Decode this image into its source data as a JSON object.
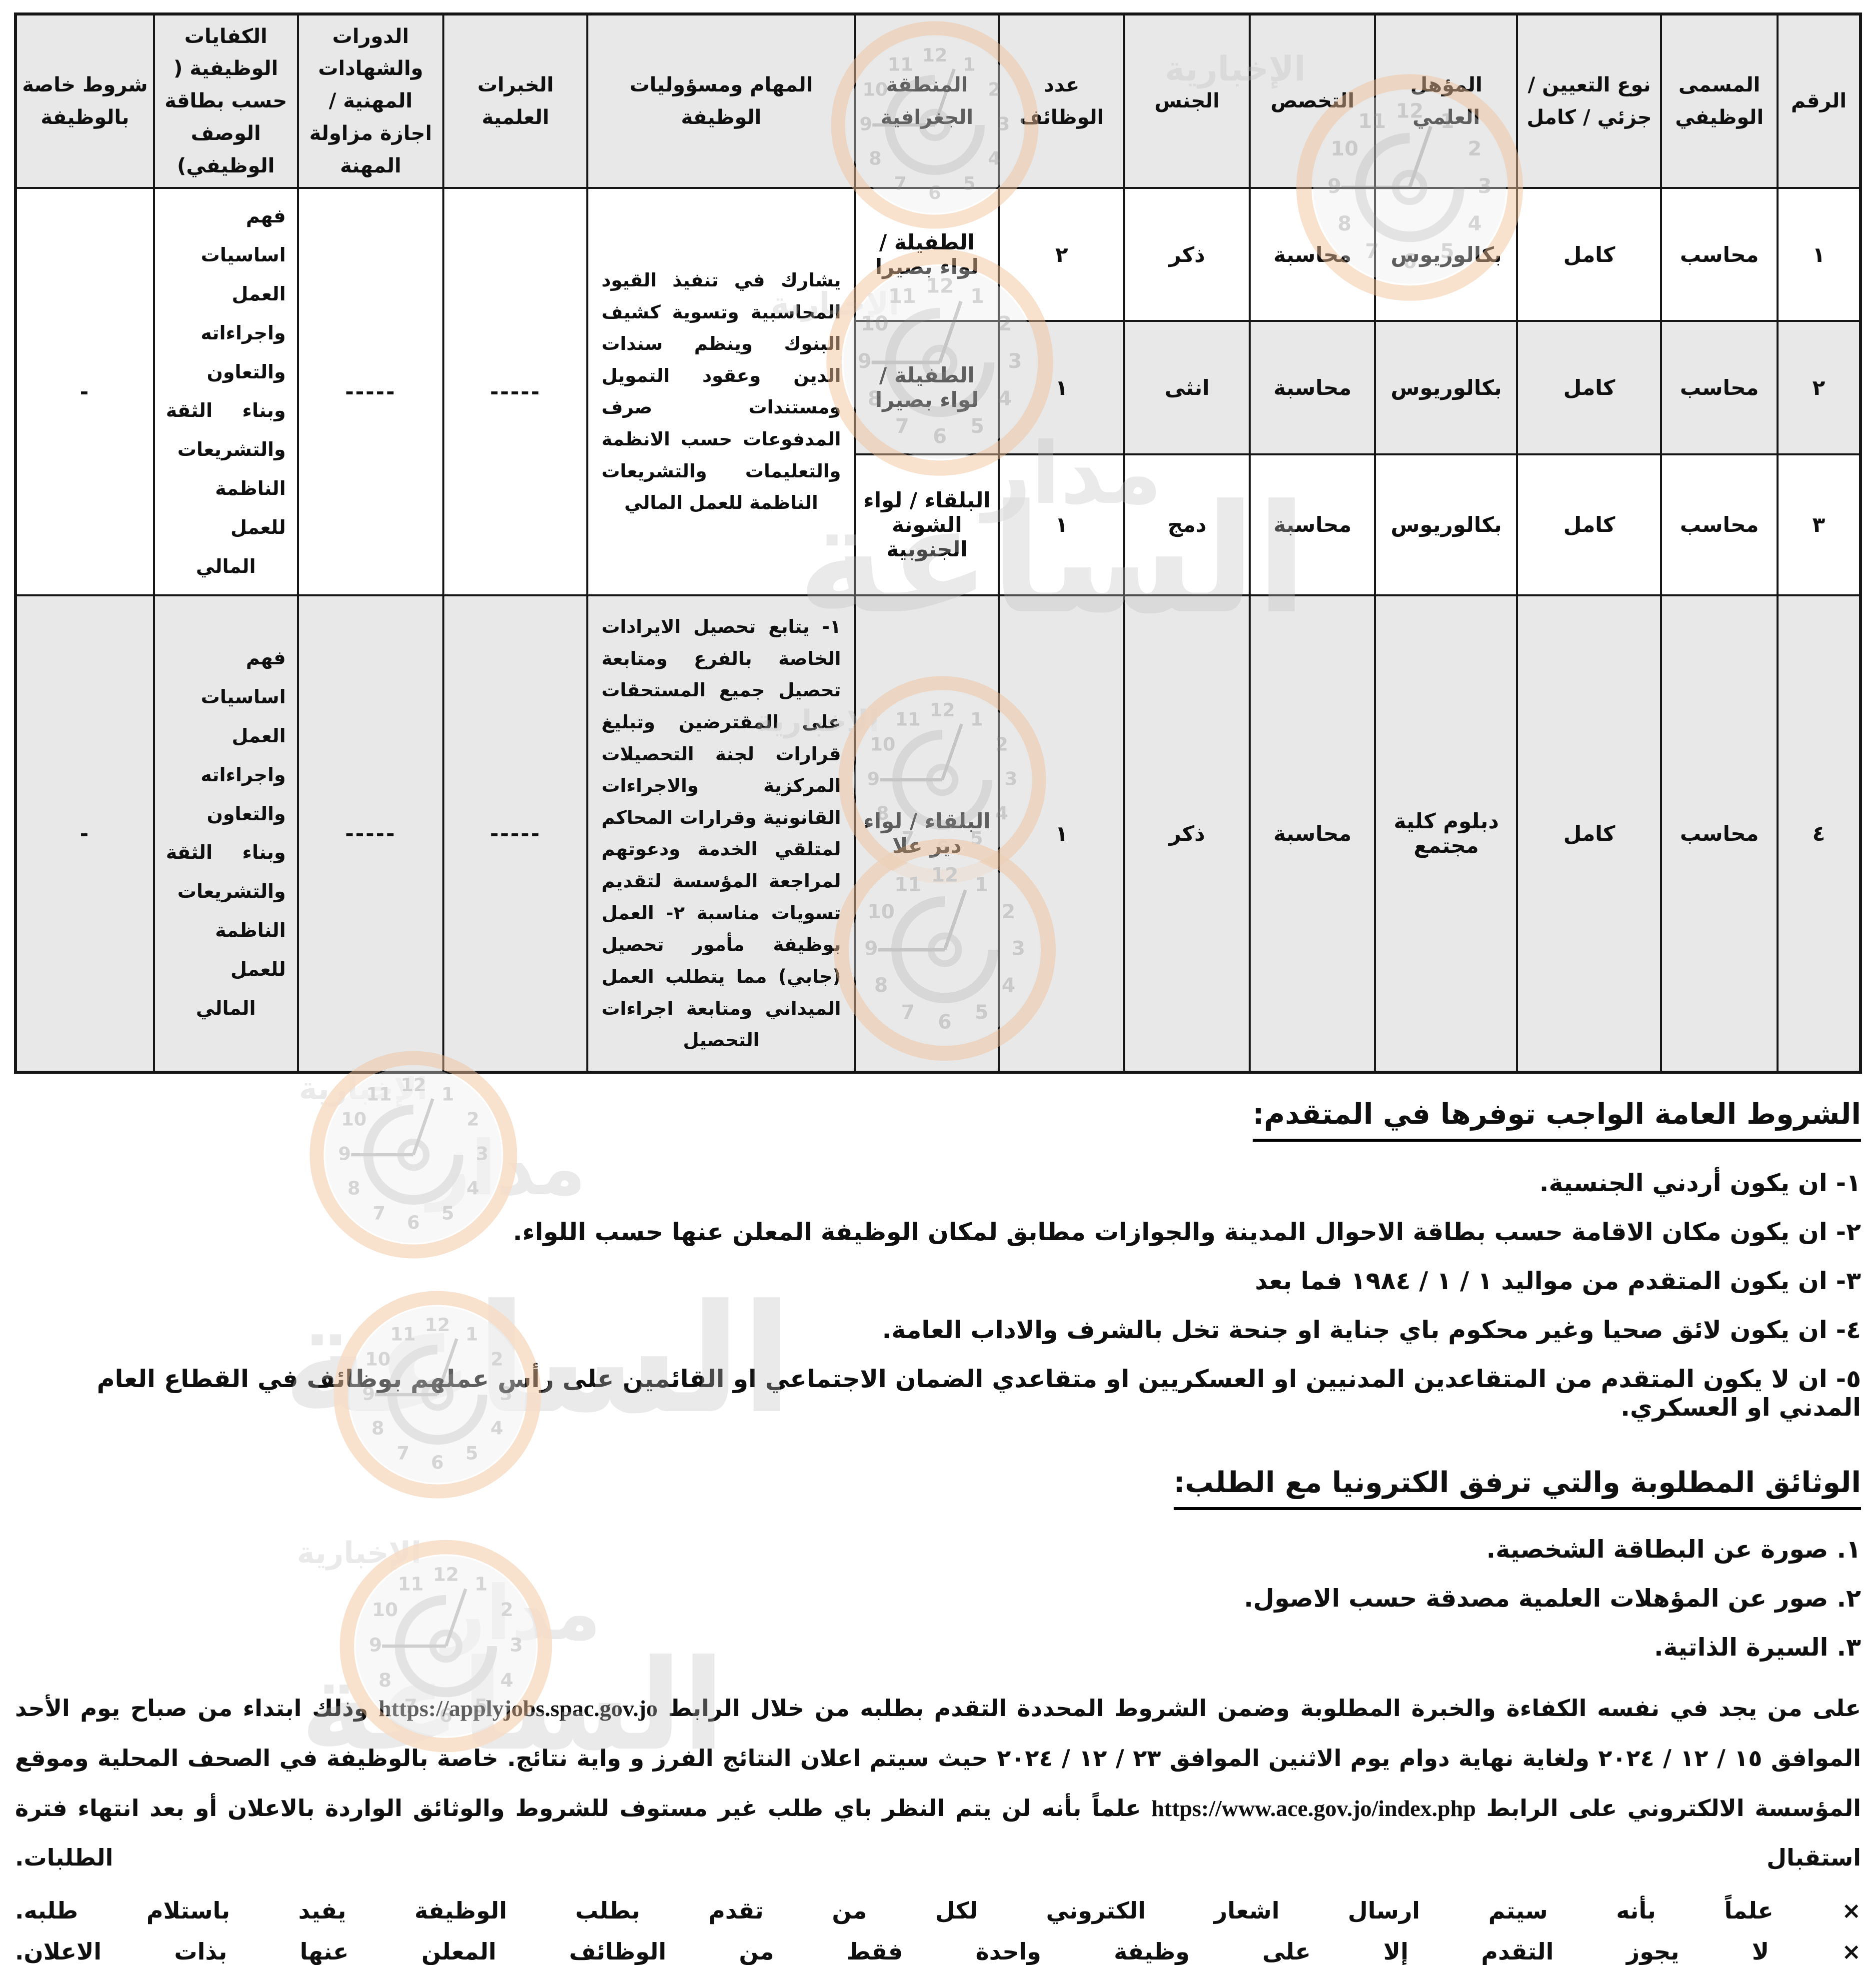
{
  "watermark": {
    "brand_top": "مدار",
    "brand_main": "الساعة",
    "brand_sub": "الإخبارية",
    "clock_numerals": [
      "12",
      "1",
      "2",
      "3",
      "4",
      "5",
      "6",
      "7",
      "8",
      "9",
      "10",
      "11"
    ]
  },
  "table": {
    "headers": [
      "الرقم",
      "المسمى الوظيفي",
      "نوع التعيين / جزئي / كامل",
      "المؤهل العلمي",
      "التخصص",
      "الجنس",
      "عدد الوظائف",
      "المنطقة الجغرافية",
      "المهام ومسؤوليات الوظيفة",
      "الخبرات العلمية",
      "الدورات والشهادات المهنية / اجازة مزاولة المهنة",
      "الكفايات الوظيفية ( حسب بطاقة الوصف الوظيفي)",
      "شروط خاصة بالوظيفة"
    ],
    "rows": [
      {
        "no": "١",
        "title": "محاسب",
        "hire_type": "كامل",
        "qualification": "بكالوريوس",
        "specialization": "محاسبة",
        "gender": "ذكر",
        "vacancies": "٢",
        "area": "الطفيلة / لواء بصيرا"
      },
      {
        "no": "٢",
        "title": "محاسب",
        "hire_type": "كامل",
        "qualification": "بكالوريوس",
        "specialization": "محاسبة",
        "gender": "انثى",
        "vacancies": "١",
        "area": "الطفيلة / لواء بصيرا"
      },
      {
        "no": "٣",
        "title": "محاسب",
        "hire_type": "كامل",
        "qualification": "بكالوريوس",
        "specialization": "محاسبة",
        "gender": "دمج",
        "vacancies": "١",
        "area": "البلقاء / لواء الشونة الجنوبية"
      },
      {
        "no": "٤",
        "title": "محاسب",
        "hire_type": "كامل",
        "qualification": "دبلوم كلية مجتمع",
        "specialization": "محاسبة",
        "gender": "ذكر",
        "vacancies": "١",
        "area": "البلقاء / لواء دير علا"
      }
    ],
    "group_rows_1_3": {
      "tasks": "يشارك في تنفيذ القيود المحاسبية وتسوية كشيف البنوك وينظم سندات الدين وعقود التمويل ومستندات صرف المدفوعات حسب الانظمة والتعليمات والتشريعات الناظمة للعمل المالي",
      "experience": "-----",
      "courses": "-----",
      "competencies": "فهم اساسيات العمل واجراءاته والتعاون وبناء الثقة والتشريعات الناظمة للعمل المالي",
      "special_conditions": "-"
    },
    "row_4": {
      "tasks": "١- يتابع تحصيل الايرادات الخاصة بالفرع ومتابعة تحصيل جميع المستحقات على المقترضين وتبليغ قرارات لجنة التحصيلات المركزية والاجراءات القانونية وقرارات المحاكم لمتلقي الخدمة ودعوتهم لمراجعة المؤسسة لتقديم تسويات مناسبة ٢- العمل بوظيفة مأمور تحصيل (جابي) مما يتطلب العمل الميداني ومتابعة اجراءات التحصيل",
      "experience": "-----",
      "courses": "-----",
      "competencies": "فهم اساسيات العمل واجراءاته والتعاون وبناء الثقة والتشريعات الناظمة للعمل المالي",
      "special_conditions": "-"
    }
  },
  "general_conditions": {
    "title": "الشروط العامة الواجب توفرها في المتقدم:",
    "items": [
      "١- ان يكون أردني الجنسية.",
      "٢- ان يكون مكان الاقامة حسب بطاقة الاحوال المدينة والجوازات مطابق لمكان الوظيفة المعلن عنها حسب اللواء.",
      "٣- ان يكون المتقدم من مواليد ١ / ١ / ١٩٨٤ فما بعد",
      "٤- ان يكون لائق صحيا وغير محكوم باي جناية او جنحة تخل بالشرف والاداب العامة.",
      "٥- ان لا يكون المتقدم من المتقاعدين المدنيين او العسكريين او متقاعدي الضمان الاجتماعي او القائمين على رأس عملهم بوظائف في القطاع العام المدني او العسكري."
    ]
  },
  "documents": {
    "title": "الوثائق المطلوبة والتي ترفق الكترونيا مع الطلب:",
    "items": [
      "١. صورة عن البطاقة الشخصية.",
      "٢. صور عن المؤهلات العلمية مصدقة حسب الاصول.",
      "٣. السيرة الذاتية."
    ]
  },
  "closing": {
    "p1": "على من يجد في نفسه الكفاءة والخبرة المطلوبة وضمن الشروط المحددة التقدم بطلبه من خلال الرابط ",
    "url1": "https://applyjobs.spac.gov.jo",
    "p2": " وذلك ابتداء من صباح يوم الأحد الموافق ١٥ / ١٢ / ٢٠٢٤ ولغاية نهاية دوام يوم الاثنين الموافق ٢٣ / ١٢ / ٢٠٢٤ حيث سيتم اعلان النتائج الفرز و واية نتائج. خاصة بالوظيفة في الصحف المحلية وموقع المؤسسة الالكتروني على الرابط ",
    "url2": "https://www.ace.gov.jo/index.php",
    "p3": " علماً بأنه لن يتم النظر باي طلب غير مستوف للشروط والوثائق الواردة بالاعلان أو بعد انتهاء فترة استقبال الطلبات.",
    "notes": [
      "× علماً بأنه سيتم ارسال اشعار الكتروني لكل من تقدم بطلب الوظيفة يفيد باستلام طلبه.",
      "× لا يجوز التقدم إلا على وظيفة واحدة فقط من الوظائف المعلن عنها بذات الاعلان."
    ]
  }
}
